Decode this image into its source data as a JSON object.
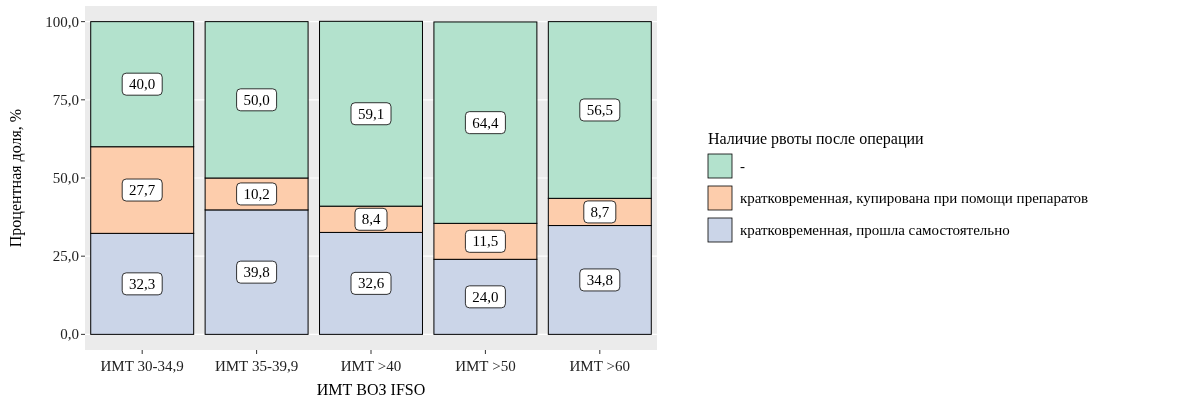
{
  "chart_data": {
    "type": "bar",
    "stacked": true,
    "xlabel": "ИМТ ВОЗ IFSO",
    "ylabel": "Процентная доля, %",
    "legend_title": "Наличие рвоты после операции",
    "legend": "right",
    "grid": "y",
    "categories": [
      "ИМТ 30-34,9",
      "ИМТ 35-39,9",
      "ИМТ >40",
      "ИМТ >50",
      "ИМТ >60"
    ],
    "ylim": [
      -5,
      105
    ],
    "yticks": [
      {
        "value": 0,
        "label": "0,0"
      },
      {
        "value": 25,
        "label": "25,0"
      },
      {
        "value": 50,
        "label": "50,0"
      },
      {
        "value": 75,
        "label": "75,0"
      },
      {
        "value": 100,
        "label": "100,0"
      }
    ],
    "series": [
      {
        "name": "кратковременная, прошла самостоятельно",
        "color": "#cbd5e8",
        "values": [
          32.3,
          39.8,
          32.6,
          24.0,
          34.8
        ],
        "value_labels": [
          "32,3",
          "39,8",
          "32,6",
          "24,0",
          "34,8"
        ]
      },
      {
        "name": "кратковременная, купирована при помощи препаратов",
        "color": "#fdcdac",
        "values": [
          27.7,
          10.2,
          8.4,
          11.5,
          8.7
        ],
        "value_labels": [
          "27,7",
          "10,2",
          "8,4",
          "11,5",
          "8,7"
        ]
      },
      {
        "name": "-",
        "color": "#b3e2cd",
        "values": [
          40.0,
          50.0,
          59.1,
          64.4,
          56.5
        ],
        "value_labels": [
          "40,0",
          "50,0",
          "59,1",
          "64,4",
          "56,5"
        ]
      }
    ]
  }
}
